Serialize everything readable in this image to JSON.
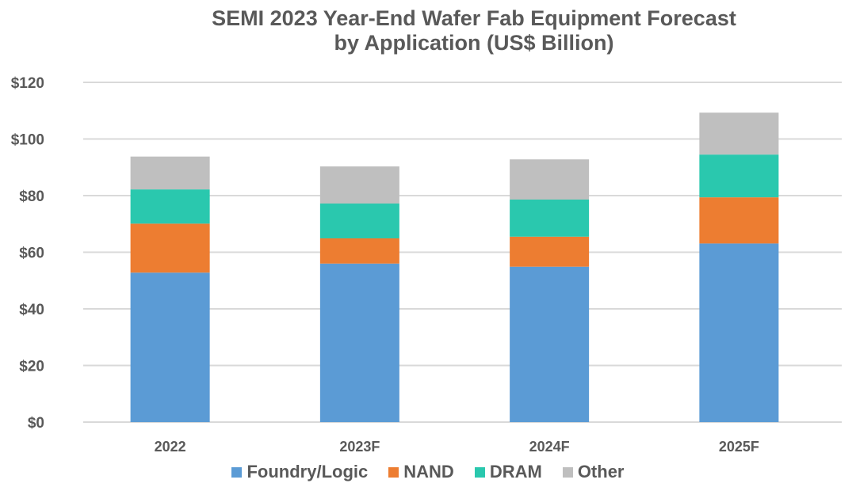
{
  "chart_data": {
    "type": "bar",
    "stacked": true,
    "title_line1": "SEMI 2023 Year-End Wafer Fab Equipment Forecast",
    "title_line2": "by Application (US$ Billion)",
    "xlabel": "",
    "ylabel": "",
    "ylim": [
      0,
      120
    ],
    "yticks": [
      "$0",
      "$20",
      "$40",
      "$60",
      "$80",
      "$100",
      "$120"
    ],
    "grid": true,
    "legend_position": "bottom",
    "categories": [
      "2022",
      "2023F",
      "2024F",
      "2025F"
    ],
    "series": [
      {
        "name": "Foundry/Logic",
        "color": "#5B9BD5",
        "values": [
          52.8,
          56.0,
          54.9,
          63.1
        ]
      },
      {
        "name": "NAND",
        "color": "#ED7D31",
        "values": [
          17.3,
          8.9,
          10.6,
          16.3
        ]
      },
      {
        "name": "DRAM",
        "color": "#2AC8AE",
        "values": [
          12.1,
          12.3,
          13.1,
          15.1
        ]
      },
      {
        "name": "Other",
        "color": "#BFBFBF",
        "values": [
          11.6,
          13.1,
          14.2,
          14.8
        ]
      }
    ]
  }
}
